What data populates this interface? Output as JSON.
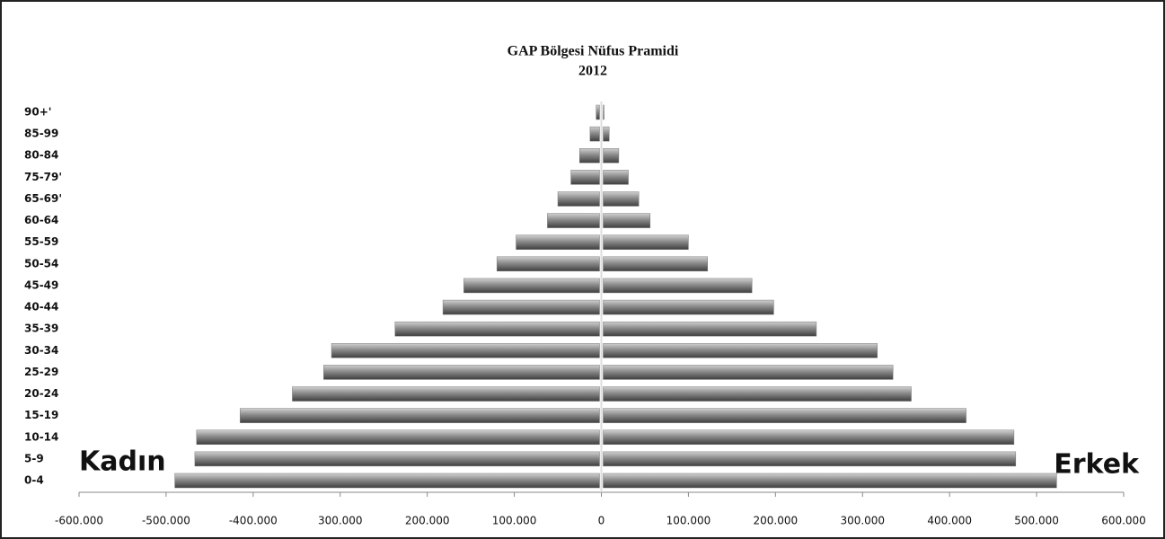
{
  "chart_data": {
    "type": "bar",
    "orientation": "horizontal",
    "stacked": "diverging",
    "title": "GAP Bölgesi Nüfus Pramidi",
    "subtitle": "2012",
    "categories": [
      "0-4",
      "5-9",
      "10-14",
      "15-19",
      "20-24",
      "25-29",
      "30-34",
      "35-39",
      "40-44",
      "45-49",
      "50-54",
      "55-59",
      "60-64",
      "65-69'",
      "75-79'",
      "80-84",
      "85-99",
      "90+'"
    ],
    "series": [
      {
        "name": "Kadın",
        "color": "#7a7a7a",
        "values": [
          -490000,
          -467000,
          -465000,
          -415000,
          -355000,
          -319000,
          -310000,
          -237000,
          -182000,
          -158000,
          -120000,
          -98000,
          -62000,
          -50000,
          -35000,
          -25000,
          -13000,
          -6000
        ]
      },
      {
        "name": "Erkek",
        "color": "#7a7a7a",
        "values": [
          523000,
          476000,
          474000,
          419000,
          356000,
          335000,
          317000,
          247000,
          198000,
          173000,
          122000,
          100000,
          56000,
          43000,
          31000,
          20000,
          9000,
          3000
        ]
      }
    ],
    "xlim": [
      -600000,
      600000
    ],
    "xticks": [
      {
        "value": -600000,
        "label": "-600.000"
      },
      {
        "value": -500000,
        "label": "-500.000"
      },
      {
        "value": -400000,
        "label": "-400.000"
      },
      {
        "value": -300000,
        "label": "300.000"
      },
      {
        "value": -200000,
        "label": "200.000"
      },
      {
        "value": -100000,
        "label": "100.000"
      },
      0,
      {
        "value": 100000,
        "label": "100.000"
      },
      {
        "value": 200000,
        "label": "200.000"
      },
      {
        "value": 300000,
        "label": "300.000"
      },
      {
        "value": 400000,
        "label": "400.000"
      },
      {
        "value": 500000,
        "label": "500.000"
      },
      {
        "value": 600000,
        "label": "600.000"
      }
    ],
    "grid": false
  }
}
